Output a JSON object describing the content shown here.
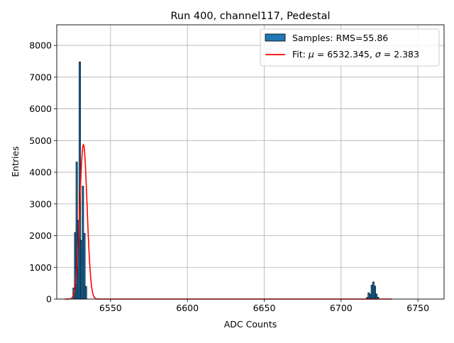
{
  "chart_data": {
    "type": "bar",
    "title": "Run 400, channel117, Pedestal",
    "xlabel": "ADC Counts",
    "ylabel": "Entries",
    "xlim": [
      6515,
      6767
    ],
    "ylim": [
      0,
      8650
    ],
    "xticks": [
      6550,
      6600,
      6650,
      6700,
      6750
    ],
    "yticks": [
      0,
      1000,
      2000,
      3000,
      4000,
      5000,
      6000,
      7000,
      8000
    ],
    "grid": true,
    "legend_position": "top-right",
    "bin_width": 1,
    "histogram": {
      "name": "Samples: RMS=55.86",
      "color": "#1f77b4",
      "edgecolor": "#000000",
      "bins": [
        {
          "x": 6526,
          "y": 350
        },
        {
          "x": 6527,
          "y": 2100
        },
        {
          "x": 6528,
          "y": 4320
        },
        {
          "x": 6529,
          "y": 2480
        },
        {
          "x": 6530,
          "y": 7480
        },
        {
          "x": 6531,
          "y": 1850
        },
        {
          "x": 6532,
          "y": 3560
        },
        {
          "x": 6533,
          "y": 2070
        },
        {
          "x": 6534,
          "y": 400
        },
        {
          "x": 6717,
          "y": 50
        },
        {
          "x": 6718,
          "y": 200
        },
        {
          "x": 6719,
          "y": 150
        },
        {
          "x": 6720,
          "y": 440
        },
        {
          "x": 6721,
          "y": 540
        },
        {
          "x": 6722,
          "y": 410
        },
        {
          "x": 6723,
          "y": 160
        },
        {
          "x": 6724,
          "y": 60
        }
      ]
    },
    "fit": {
      "name_prefix": "Fit: ",
      "name_mu": "μ",
      "name_mid": " = 6532.345, ",
      "name_sigma": "σ",
      "name_suffix": " = 2.383",
      "color": "#ff0000",
      "mu": 6532.345,
      "sigma": 2.383,
      "amplitude": 4870,
      "x_range": [
        6520,
        6733
      ]
    }
  }
}
